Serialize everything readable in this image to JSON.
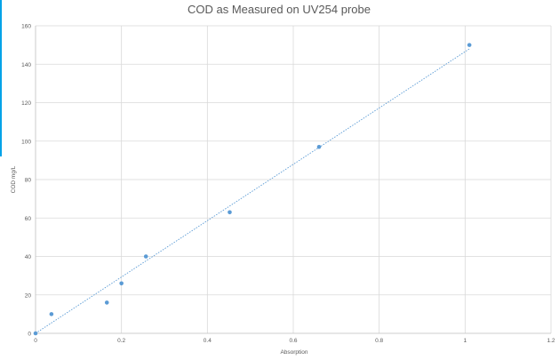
{
  "chart_data": {
    "type": "scatter",
    "title": "COD as Measured on UV254 probe",
    "xlabel": "Absorption",
    "ylabel": "COD mg/L",
    "xlim": [
      0,
      1.2
    ],
    "ylim": [
      0,
      160
    ],
    "x_ticks": [
      "0",
      "0.2",
      "0.4",
      "0.6",
      "0.8",
      "1",
      "1.2"
    ],
    "y_ticks": [
      "0",
      "20",
      "40",
      "60",
      "80",
      "100",
      "120",
      "140",
      "160"
    ],
    "grid": true,
    "series": [
      {
        "points": [
          {
            "x": 0.0,
            "y": 0
          },
          {
            "x": 0.037,
            "y": 10
          },
          {
            "x": 0.166,
            "y": 16
          },
          {
            "x": 0.2,
            "y": 26
          },
          {
            "x": 0.257,
            "y": 40
          },
          {
            "x": 0.452,
            "y": 63
          },
          {
            "x": 0.66,
            "y": 97
          },
          {
            "x": 1.01,
            "y": 150
          }
        ],
        "color": "#5b9bd5"
      }
    ],
    "trendline": {
      "type": "linear",
      "x0": 0.0,
      "y0": 0,
      "x1": 1.01,
      "y1": 148,
      "style": "dotted",
      "color": "#5b9bd5"
    }
  }
}
